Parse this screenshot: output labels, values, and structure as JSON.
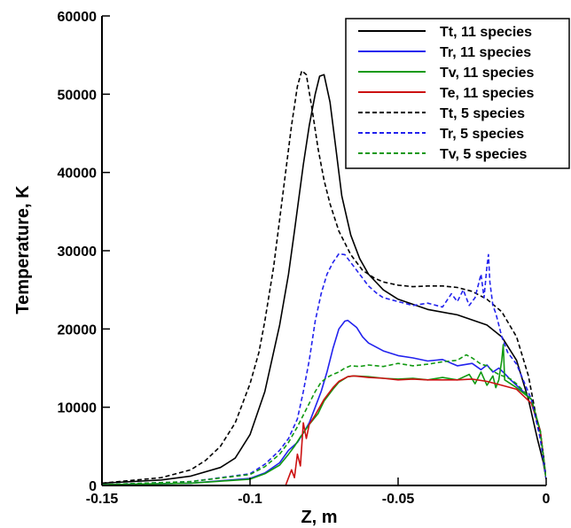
{
  "chart_data": {
    "type": "line",
    "title": "",
    "xlabel": "Z, m",
    "ylabel": "Temperature, K",
    "xlim": [
      -0.15,
      0
    ],
    "ylim": [
      0,
      60000
    ],
    "xticks": [
      -0.15,
      -0.1,
      -0.05,
      0
    ],
    "xtick_labels": [
      "-0.15",
      "-0.1",
      "-0.05",
      "0"
    ],
    "yticks": [
      0,
      10000,
      20000,
      30000,
      40000,
      50000,
      60000
    ],
    "ytick_labels": [
      "0",
      "10000",
      "20000",
      "30000",
      "40000",
      "50000",
      "60000"
    ],
    "grid": false,
    "legend_position": "top-right",
    "series": [
      {
        "name": "Tt, 11 species",
        "color": "#000000",
        "dash": "solid",
        "x": [
          -0.15,
          -0.13,
          -0.12,
          -0.11,
          -0.105,
          -0.1,
          -0.095,
          -0.09,
          -0.087,
          -0.085,
          -0.082,
          -0.08,
          -0.078,
          -0.0765,
          -0.075,
          -0.073,
          -0.071,
          -0.069,
          -0.066,
          -0.063,
          -0.06,
          -0.055,
          -0.05,
          -0.04,
          -0.03,
          -0.02,
          -0.015,
          -0.01,
          -0.006,
          -0.003,
          -0.001,
          0
        ],
        "y": [
          300,
          700,
          1200,
          2300,
          3500,
          6500,
          12000,
          20500,
          27000,
          32500,
          41000,
          46000,
          50000,
          52300,
          52500,
          49000,
          43000,
          37000,
          32000,
          29000,
          27000,
          25000,
          23800,
          22500,
          21800,
          20500,
          19000,
          16000,
          11000,
          6000,
          3000,
          800
        ]
      },
      {
        "name": "Tr, 11 species",
        "color": "#2222ee",
        "dash": "solid",
        "x": [
          -0.15,
          -0.12,
          -0.1,
          -0.095,
          -0.09,
          -0.087,
          -0.084,
          -0.082,
          -0.08,
          -0.078,
          -0.076,
          -0.074,
          -0.072,
          -0.07,
          -0.068,
          -0.067,
          -0.064,
          -0.062,
          -0.06,
          -0.055,
          -0.05,
          -0.045,
          -0.04,
          -0.035,
          -0.03,
          -0.025,
          -0.022,
          -0.02,
          -0.018,
          -0.016,
          -0.014,
          -0.012,
          -0.01,
          -0.005,
          -0.002,
          0
        ],
        "y": [
          100,
          300,
          900,
          1600,
          2900,
          4500,
          5500,
          6700,
          8000,
          10000,
          12000,
          14500,
          17500,
          20000,
          21000,
          21100,
          20200,
          19000,
          18200,
          17200,
          16600,
          16300,
          15900,
          16100,
          15300,
          15600,
          14800,
          15400,
          14500,
          15000,
          14300,
          13500,
          12800,
          11000,
          7000,
          800
        ]
      },
      {
        "name": "Tv, 11 species",
        "color": "#119911",
        "dash": "solid",
        "x": [
          -0.15,
          -0.12,
          -0.1,
          -0.095,
          -0.09,
          -0.087,
          -0.085,
          -0.083,
          -0.08,
          -0.077,
          -0.075,
          -0.072,
          -0.07,
          -0.067,
          -0.065,
          -0.06,
          -0.055,
          -0.05,
          -0.045,
          -0.04,
          -0.035,
          -0.03,
          -0.026,
          -0.024,
          -0.022,
          -0.02,
          -0.018,
          -0.017,
          -0.016,
          -0.015,
          -0.0145,
          -0.014,
          -0.012,
          -0.01,
          -0.005,
          -0.002,
          0
        ],
        "y": [
          100,
          300,
          800,
          1500,
          2600,
          4000,
          5000,
          6200,
          7800,
          9200,
          10800,
          12300,
          13200,
          13900,
          14000,
          13900,
          13700,
          13600,
          13700,
          13500,
          13800,
          13500,
          14200,
          13000,
          14500,
          12800,
          14000,
          12500,
          13500,
          16000,
          18000,
          13500,
          13000,
          12500,
          11000,
          7000,
          800
        ]
      },
      {
        "name": "Te, 11 species",
        "color": "#cc1111",
        "dash": "solid",
        "x": [
          -0.088,
          -0.086,
          -0.085,
          -0.084,
          -0.083,
          -0.082,
          -0.081,
          -0.08,
          -0.078,
          -0.075,
          -0.072,
          -0.07,
          -0.067,
          -0.065,
          -0.06,
          -0.055,
          -0.05,
          -0.045,
          -0.04,
          -0.035,
          -0.03,
          -0.025,
          -0.02,
          -0.015,
          -0.01,
          -0.005,
          -0.002,
          0
        ],
        "y": [
          0,
          2000,
          1000,
          4000,
          2500,
          8000,
          6000,
          7800,
          9000,
          11000,
          12500,
          13300,
          13900,
          14000,
          13800,
          13700,
          13500,
          13600,
          13500,
          13500,
          13500,
          13600,
          13300,
          12800,
          12300,
          10500,
          7000,
          800
        ]
      },
      {
        "name": "Tt, 5 species",
        "color": "#000000",
        "dash": "dashed",
        "x": [
          -0.15,
          -0.13,
          -0.12,
          -0.115,
          -0.11,
          -0.105,
          -0.1,
          -0.097,
          -0.095,
          -0.092,
          -0.09,
          -0.088,
          -0.086,
          -0.084,
          -0.0825,
          -0.081,
          -0.079,
          -0.077,
          -0.075,
          -0.073,
          -0.07,
          -0.066,
          -0.062,
          -0.058,
          -0.055,
          -0.05,
          -0.045,
          -0.04,
          -0.035,
          -0.03,
          -0.025,
          -0.02,
          -0.015,
          -0.01,
          -0.006,
          -0.003,
          -0.001,
          0
        ],
        "y": [
          300,
          1000,
          2000,
          3200,
          5000,
          8000,
          13000,
          17000,
          21000,
          28000,
          34000,
          40000,
          46000,
          51000,
          53000,
          52500,
          48000,
          43000,
          39000,
          36000,
          32500,
          29500,
          27500,
          26500,
          26000,
          25600,
          25400,
          25500,
          25500,
          25300,
          24800,
          23800,
          22200,
          19000,
          14000,
          8000,
          4000,
          800
        ]
      },
      {
        "name": "Tr, 5 species",
        "color": "#2222ee",
        "dash": "dashed",
        "x": [
          -0.15,
          -0.12,
          -0.1,
          -0.095,
          -0.09,
          -0.087,
          -0.084,
          -0.082,
          -0.08,
          -0.078,
          -0.076,
          -0.074,
          -0.072,
          -0.07,
          -0.068,
          -0.066,
          -0.063,
          -0.06,
          -0.057,
          -0.055,
          -0.05,
          -0.045,
          -0.04,
          -0.035,
          -0.032,
          -0.03,
          -0.028,
          -0.026,
          -0.024,
          -0.022,
          -0.021,
          -0.02,
          -0.0195,
          -0.019,
          -0.018,
          -0.017,
          -0.016,
          -0.015,
          -0.013,
          -0.01,
          -0.005,
          -0.002,
          0
        ],
        "y": [
          100,
          500,
          1500,
          2700,
          4500,
          6000,
          8500,
          12000,
          16000,
          21000,
          24500,
          27000,
          28500,
          29600,
          29500,
          28500,
          27000,
          25500,
          24500,
          24000,
          23500,
          23000,
          23300,
          22800,
          24500,
          23500,
          25000,
          23000,
          24000,
          27000,
          24000,
          28000,
          29500,
          26000,
          23000,
          22000,
          20500,
          19000,
          17000,
          15500,
          11000,
          6000,
          800
        ]
      },
      {
        "name": "Tv, 5 species",
        "color": "#119911",
        "dash": "dashed",
        "x": [
          -0.15,
          -0.12,
          -0.1,
          -0.095,
          -0.09,
          -0.087,
          -0.084,
          -0.082,
          -0.08,
          -0.078,
          -0.076,
          -0.074,
          -0.072,
          -0.07,
          -0.068,
          -0.066,
          -0.063,
          -0.06,
          -0.055,
          -0.05,
          -0.045,
          -0.04,
          -0.035,
          -0.03,
          -0.027,
          -0.025,
          -0.022,
          -0.02,
          -0.018,
          -0.016,
          -0.014,
          -0.012,
          -0.01,
          -0.005,
          -0.002,
          0
        ],
        "y": [
          100,
          500,
          1400,
          2400,
          4000,
          5500,
          7500,
          9000,
          10500,
          12000,
          13200,
          13800,
          14200,
          14500,
          15000,
          15300,
          15200,
          15400,
          15200,
          15600,
          15300,
          15500,
          15800,
          16000,
          16700,
          16300,
          15500,
          15300,
          14600,
          14200,
          13900,
          13600,
          13000,
          11000,
          7000,
          800
        ]
      }
    ]
  }
}
